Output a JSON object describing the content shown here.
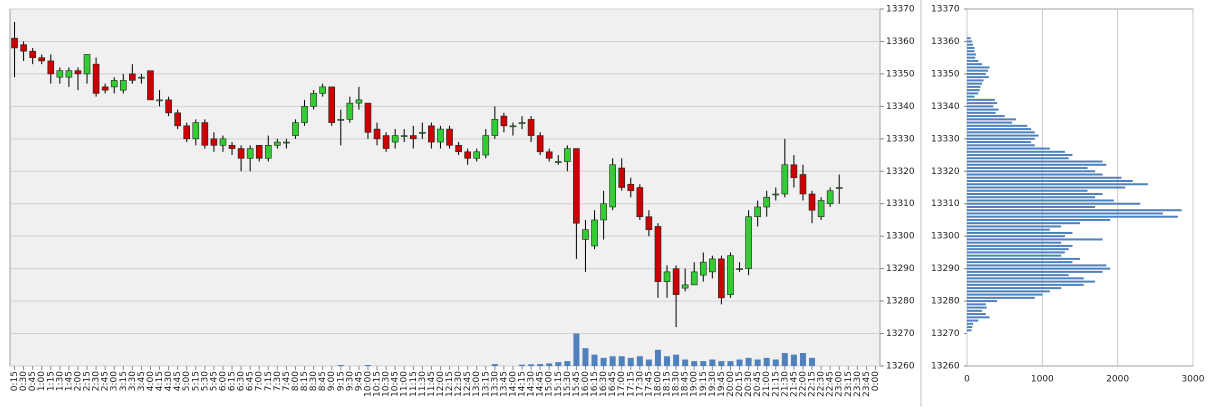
{
  "chart_data": [
    {
      "type": "candlestick",
      "categories": [
        "0:15",
        "0:30",
        "0:45",
        "1:00",
        "1:15",
        "1:30",
        "1:45",
        "2:00",
        "2:15",
        "2:30",
        "2:45",
        "3:00",
        "3:15",
        "3:30",
        "3:45",
        "4:00",
        "4:15",
        "4:30",
        "4:45",
        "5:00",
        "5:15",
        "5:30",
        "5:45",
        "6:00",
        "6:15",
        "6:30",
        "6:45",
        "7:00",
        "7:15",
        "7:30",
        "7:45",
        "8:00",
        "8:15",
        "8:30",
        "8:45",
        "9:00",
        "9:15",
        "9:30",
        "9:45",
        "10:00",
        "10:15",
        "10:30",
        "10:45",
        "11:00",
        "11:15",
        "11:30",
        "11:45",
        "12:00",
        "12:15",
        "12:30",
        "12:45",
        "13:00",
        "13:15",
        "13:30",
        "13:45",
        "14:00",
        "14:15",
        "14:30",
        "14:45",
        "15:00",
        "15:15",
        "15:30",
        "15:45",
        "16:00",
        "16:15",
        "16:30",
        "16:45",
        "17:00",
        "17:15",
        "17:30",
        "17:45",
        "18:00",
        "18:15",
        "18:30",
        "18:45",
        "19:00",
        "19:15",
        "19:30",
        "19:45",
        "20:00",
        "20:15",
        "20:30",
        "20:45",
        "21:00",
        "21:15",
        "21:30",
        "21:45",
        "22:00",
        "22:15",
        "22:30",
        "22:45",
        "23:00",
        "23:15",
        "23:30",
        "23:45",
        "0:00"
      ],
      "open": [
        13361,
        13359,
        13357,
        13355,
        13354,
        13349,
        13349,
        13351,
        13350,
        13353,
        13346,
        13346,
        13345,
        13350,
        13349,
        13351,
        13342,
        13342,
        13338,
        13334,
        13330,
        13335,
        13330,
        13328,
        13328,
        13327,
        13324,
        13328,
        13324,
        13328,
        13329,
        13331,
        13335,
        13340,
        13344,
        13346,
        13336,
        13336,
        13341,
        13341,
        13333,
        13331,
        13329,
        13331,
        13331,
        13332,
        13334,
        13329,
        13333,
        13328,
        13326,
        13324,
        13325,
        13331,
        13337,
        13334,
        13335,
        13336,
        13331,
        13326,
        13323,
        13323,
        13327,
        13299,
        13297,
        13305,
        13309,
        13321,
        13316,
        13315,
        13306,
        13303,
        13286,
        13290,
        13284,
        13285,
        13288,
        13289,
        13293,
        13282,
        13290,
        13290,
        13306,
        13309,
        13313,
        13313,
        13322,
        13319,
        13313,
        13306,
        13310,
        13315,
        null,
        null,
        null,
        null
      ],
      "high": [
        13366,
        13360,
        13358,
        13356,
        13356,
        13352,
        13352,
        13352,
        13356,
        13355,
        13347,
        13349,
        13350,
        13353,
        13350,
        13351,
        13345,
        13343,
        13339,
        13335,
        13336,
        13336,
        13332,
        13331,
        13329,
        13328,
        13328,
        13328,
        13331,
        13330,
        13330,
        13336,
        13342,
        13345,
        13347,
        13346,
        13339,
        13343,
        13346,
        13341,
        13335,
        13332,
        13333,
        13333,
        13334,
        13335,
        13335,
        13334,
        13334,
        13329,
        13327,
        13327,
        13333,
        13340,
        13338,
        13335,
        13337,
        13337,
        13332,
        13327,
        13325,
        13328,
        13327,
        13305,
        13308,
        13314,
        13324,
        13324,
        13318,
        13316,
        13308,
        13304,
        13291,
        13291,
        13290,
        13292,
        13295,
        13294,
        13294,
        13295,
        13292,
        13308,
        13311,
        13314,
        13315,
        13330,
        13325,
        13322,
        13314,
        13312,
        13315,
        13319,
        null,
        null,
        null,
        null
      ],
      "low": [
        13349,
        13354,
        13353,
        13353,
        13347,
        13347,
        13346,
        13345,
        13347,
        13343,
        13344,
        13344,
        13344,
        13347,
        13347,
        13342,
        13340,
        13337,
        13333,
        13329,
        13328,
        13327,
        13326,
        13326,
        13325,
        13320,
        13320,
        13323,
        13323,
        13327,
        13327,
        13330,
        13334,
        13339,
        13343,
        13334,
        13328,
        13335,
        13339,
        13330,
        13328,
        13326,
        13327,
        13329,
        13327,
        13330,
        13327,
        13327,
        13327,
        13325,
        13322,
        13323,
        13324,
        13330,
        13332,
        13331,
        13333,
        13329,
        13325,
        13323,
        13322,
        13320,
        13293,
        13289,
        13296,
        13299,
        13308,
        13314,
        13312,
        13305,
        13300,
        13281,
        13281,
        13272,
        13283,
        13285,
        13286,
        13287,
        13279,
        13281,
        13289,
        13288,
        13303,
        13306,
        13311,
        13312,
        13315,
        13311,
        13304,
        13305,
        13309,
        13310,
        null,
        null,
        null,
        null
      ],
      "close": [
        13358,
        13357,
        13355,
        13354,
        13350,
        13351,
        13351,
        13350,
        13356,
        13344,
        13345,
        13348,
        13348,
        13348,
        13349,
        13342,
        13342,
        13338,
        13334,
        13330,
        13335,
        13328,
        13328,
        13330,
        13327,
        13324,
        13327,
        13324,
        13328,
        13329,
        13329,
        13335,
        13340,
        13344,
        13346,
        13335,
        13336,
        13341,
        13342,
        13332,
        13330,
        13327,
        13331,
        13331,
        13330,
        13332,
        13329,
        13333,
        13328,
        13326,
        13324,
        13326,
        13331,
        13336,
        13334,
        13334,
        13335,
        13331,
        13326,
        13324,
        13323,
        13327,
        13304,
        13302,
        13305,
        13310,
        13322,
        13315,
        13314,
        13306,
        13302,
        13286,
        13289,
        13282,
        13285,
        13289,
        13292,
        13293,
        13281,
        13294,
        13290,
        13306,
        13309,
        13312,
        13313,
        13322,
        13318,
        13313,
        13308,
        13311,
        13314,
        13315,
        null,
        null,
        null,
        null
      ],
      "volume": [
        null,
        null,
        null,
        null,
        null,
        null,
        null,
        null,
        null,
        null,
        null,
        null,
        null,
        null,
        null,
        null,
        null,
        null,
        null,
        null,
        null,
        null,
        null,
        null,
        null,
        null,
        null,
        null,
        null,
        null,
        null,
        null,
        null,
        null,
        null,
        null,
        0.3,
        null,
        null,
        0.3,
        null,
        null,
        null,
        null,
        null,
        null,
        null,
        null,
        null,
        null,
        null,
        null,
        null,
        0.6,
        null,
        null,
        0.4,
        0.5,
        0.6,
        0.8,
        1.2,
        1.5,
        10,
        5.5,
        3.5,
        2.5,
        3,
        3,
        2.5,
        3,
        2,
        5,
        3,
        3.5,
        2,
        1.5,
        1.5,
        2,
        1.5,
        1.5,
        2,
        2.5,
        2,
        2.5,
        2,
        4,
        3.5,
        4,
        2.5,
        null,
        null,
        null,
        null,
        null,
        null,
        null
      ],
      "up_color": "#33cc33",
      "down_color": "#cc0000",
      "volume_color": "#4f81bd",
      "ylim": [
        13260,
        13370
      ],
      "yticks": [
        13260,
        13270,
        13280,
        13290,
        13300,
        13310,
        13320,
        13330,
        13340,
        13350,
        13360,
        13370
      ],
      "grid": true
    },
    {
      "type": "barh",
      "y": [
        13271,
        13272,
        13273,
        13274,
        13275,
        13276,
        13277,
        13278,
        13279,
        13280,
        13281,
        13282,
        13283,
        13284,
        13285,
        13286,
        13287,
        13288,
        13289,
        13290,
        13291,
        13292,
        13293,
        13294,
        13295,
        13296,
        13297,
        13298,
        13299,
        13300,
        13301,
        13302,
        13303,
        13304,
        13305,
        13306,
        13307,
        13308,
        13309,
        13310,
        13311,
        13312,
        13313,
        13314,
        13315,
        13316,
        13317,
        13318,
        13319,
        13320,
        13321,
        13322,
        13323,
        13324,
        13325,
        13326,
        13327,
        13328,
        13329,
        13330,
        13331,
        13332,
        13333,
        13334,
        13335,
        13336,
        13337,
        13338,
        13339,
        13340,
        13341,
        13342,
        13343,
        13344,
        13345,
        13346,
        13347,
        13348,
        13349,
        13350,
        13351,
        13352,
        13353,
        13354,
        13355,
        13356,
        13357,
        13358,
        13359,
        13360,
        13361
      ],
      "values": [
        60,
        70,
        80,
        150,
        300,
        250,
        200,
        260,
        250,
        400,
        900,
        1000,
        1100,
        1250,
        1550,
        1700,
        1550,
        1350,
        1800,
        1900,
        1850,
        1400,
        1500,
        1250,
        1300,
        1350,
        1400,
        1250,
        1800,
        1300,
        1400,
        1100,
        1250,
        1500,
        1900,
        2800,
        2600,
        2850,
        1700,
        2300,
        1950,
        1700,
        1800,
        1600,
        2100,
        2400,
        2200,
        2050,
        1800,
        1700,
        1600,
        1850,
        1800,
        1350,
        1400,
        1300,
        1100,
        900,
        850,
        900,
        950,
        900,
        850,
        800,
        600,
        650,
        500,
        380,
        420,
        350,
        400,
        370,
        100,
        150,
        170,
        180,
        200,
        220,
        290,
        250,
        280,
        300,
        200,
        150,
        110,
        120,
        100,
        100,
        80,
        70,
        50
      ],
      "color": "#4f81bd",
      "ylim": [
        13260,
        13370
      ],
      "yticks": [
        13260,
        13270,
        13280,
        13290,
        13300,
        13310,
        13320,
        13330,
        13340,
        13350,
        13360,
        13370
      ],
      "xlim": [
        0,
        3000
      ],
      "xticks": [
        0,
        1000,
        2000,
        3000
      ],
      "grid": true
    }
  ]
}
